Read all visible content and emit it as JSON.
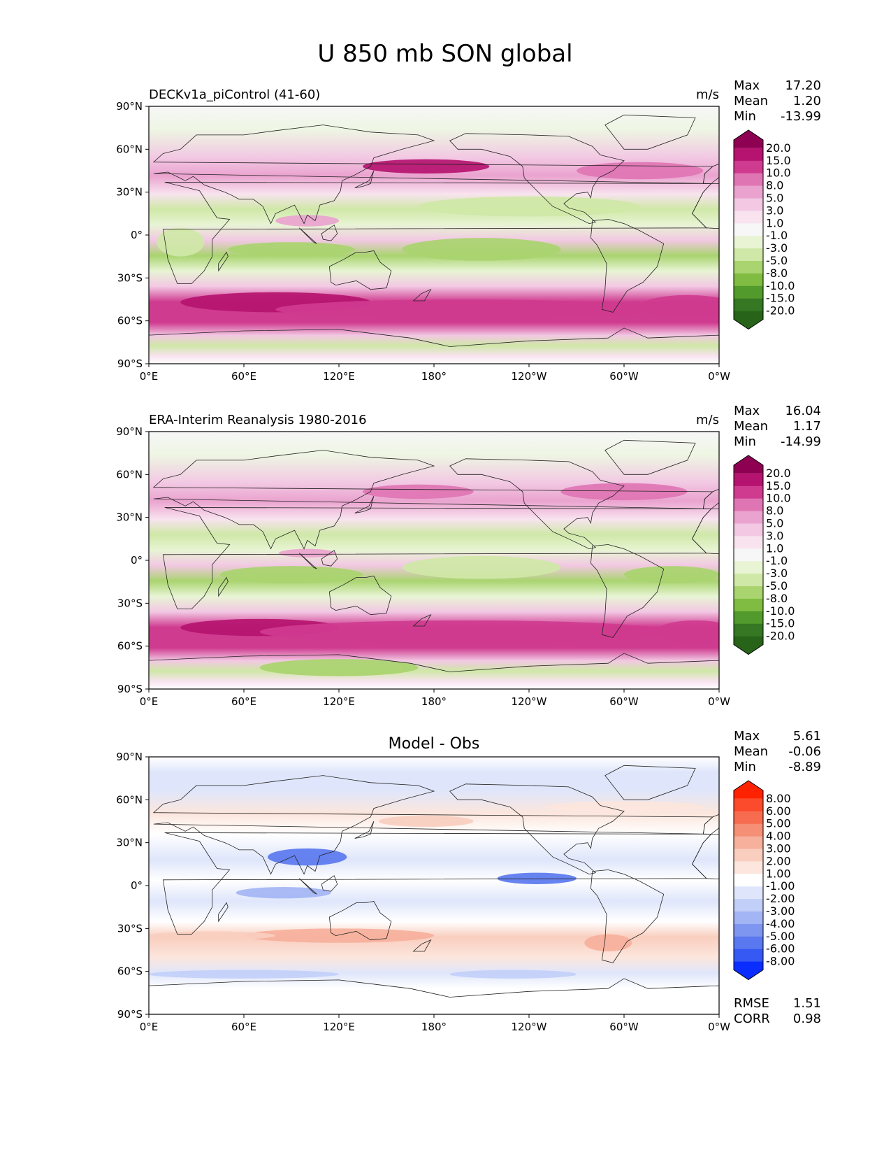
{
  "title": "U 850 mb SON global",
  "axes": {
    "lon_ticks": [
      "0°E",
      "60°E",
      "120°E",
      "180°",
      "120°W",
      "60°W",
      "0°W"
    ],
    "lat_ticks": [
      "90°N",
      "60°N",
      "30°N",
      "0°",
      "30°S",
      "60°S",
      "90°S"
    ]
  },
  "panels": [
    {
      "id": "model",
      "title_left": "DECKv1a_piControl (41-60)",
      "title_center": "",
      "units": "m/s",
      "stats": [
        {
          "label": "Max",
          "value": "17.20"
        },
        {
          "label": "Mean",
          "value": "1.20"
        },
        {
          "label": "Min",
          "value": "-13.99"
        }
      ],
      "colorbar": {
        "levels": [
          "20.0",
          "15.0",
          "10.0",
          "8.0",
          "5.0",
          "3.0",
          "1.0",
          "-1.0",
          "-3.0",
          "-5.0",
          "-8.0",
          "-10.0",
          "-15.0",
          "-20.0"
        ],
        "colors": [
          "#8e0152",
          "#b5136f",
          "#cf3b8f",
          "#e075b4",
          "#eaa3cf",
          "#f2c8e3",
          "#f8e3ef",
          "#f7f7f7",
          "#e8f4d4",
          "#cfe8a7",
          "#a9d46f",
          "#7fbc41",
          "#539a2c",
          "#357723",
          "#276419"
        ]
      },
      "extra_stats": []
    },
    {
      "id": "obs",
      "title_left": "ERA-Interim Reanalysis 1980-2016",
      "title_center": "",
      "units": "m/s",
      "stats": [
        {
          "label": "Max",
          "value": "16.04"
        },
        {
          "label": "Mean",
          "value": "1.17"
        },
        {
          "label": "Min",
          "value": "-14.99"
        }
      ],
      "colorbar": {
        "levels": [
          "20.0",
          "15.0",
          "10.0",
          "8.0",
          "5.0",
          "3.0",
          "1.0",
          "-1.0",
          "-3.0",
          "-5.0",
          "-8.0",
          "-10.0",
          "-15.0",
          "-20.0"
        ],
        "colors": [
          "#8e0152",
          "#b5136f",
          "#cf3b8f",
          "#e075b4",
          "#eaa3cf",
          "#f2c8e3",
          "#f8e3ef",
          "#f7f7f7",
          "#e8f4d4",
          "#cfe8a7",
          "#a9d46f",
          "#7fbc41",
          "#539a2c",
          "#357723",
          "#276419"
        ]
      },
      "extra_stats": []
    },
    {
      "id": "diff",
      "title_left": "",
      "title_center": "Model - Obs",
      "units": "",
      "stats": [
        {
          "label": "Max",
          "value": "5.61"
        },
        {
          "label": "Mean",
          "value": "-0.06"
        },
        {
          "label": "Min",
          "value": "-8.89"
        }
      ],
      "colorbar": {
        "levels": [
          "8.00",
          "6.00",
          "5.00",
          "4.00",
          "3.00",
          "2.00",
          "1.00",
          "-1.00",
          "-2.00",
          "-3.00",
          "-4.00",
          "-5.00",
          "-6.00",
          "-8.00"
        ],
        "colors": [
          "#ff2200",
          "#fb4a2c",
          "#f76b4f",
          "#f58f75",
          "#f6b09c",
          "#f9cebf",
          "#fce6dd",
          "#ffffff",
          "#dfe6fb",
          "#c2cff8",
          "#a3b5f4",
          "#7f96f0",
          "#5a78ef",
          "#3559f2",
          "#0a2eff"
        ]
      },
      "extra_stats": [
        {
          "label": "RMSE",
          "value": "1.51"
        },
        {
          "label": "CORR",
          "value": "0.98"
        }
      ]
    }
  ]
}
